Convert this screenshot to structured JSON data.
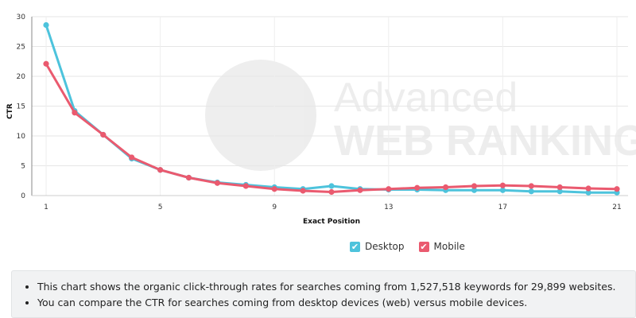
{
  "chart_data": {
    "type": "line",
    "xlabel": "Exact Position",
    "ylabel": "CTR",
    "x": [
      1,
      2,
      3,
      4,
      5,
      6,
      7,
      8,
      9,
      10,
      11,
      12,
      13,
      14,
      15,
      16,
      17,
      18,
      19,
      20,
      21
    ],
    "xticks": [
      1,
      5,
      9,
      13,
      17,
      21
    ],
    "yticks": [
      0,
      5,
      10,
      15,
      20,
      25,
      30
    ],
    "xlim": [
      1,
      21
    ],
    "ylim": [
      0,
      30
    ],
    "grid": true,
    "legend_position": "bottom",
    "series": [
      {
        "name": "Desktop",
        "color": "#4dc3dc",
        "values": [
          28.6,
          14.2,
          10.2,
          6.2,
          4.3,
          3.0,
          2.2,
          1.8,
          1.4,
          1.1,
          1.6,
          1.1,
          1.0,
          1.0,
          0.9,
          0.9,
          0.9,
          0.7,
          0.7,
          0.5,
          0.5
        ]
      },
      {
        "name": "Mobile",
        "color": "#ea5a6f",
        "values": [
          22.1,
          13.9,
          10.2,
          6.4,
          4.3,
          3.0,
          2.1,
          1.6,
          1.1,
          0.8,
          0.6,
          0.9,
          1.1,
          1.3,
          1.4,
          1.6,
          1.7,
          1.6,
          1.4,
          1.2,
          1.1
        ]
      }
    ]
  },
  "watermark": {
    "line1": "Advanced",
    "line2": "WEB RANKING"
  },
  "legend": {
    "check_icon": "check-icon"
  },
  "notes": [
    "This chart shows the organic click-through rates for searches coming from 1,527,518 keywords for 29,899 websites.",
    "You can compare the CTR for searches coming from desktop devices (web) versus mobile devices."
  ]
}
